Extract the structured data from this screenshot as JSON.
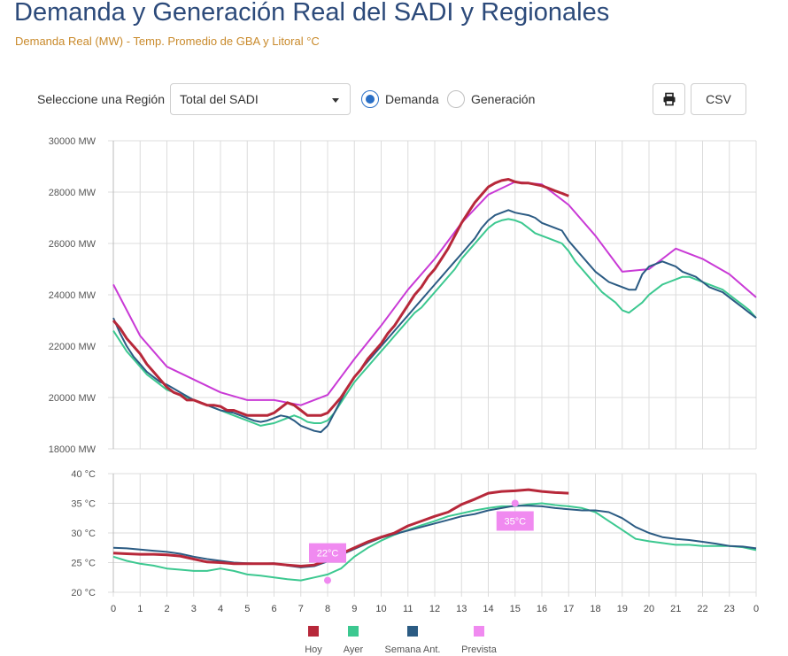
{
  "header": {
    "title": "Demanda y Generación Real del SADI y Regionales",
    "subtitle": "Demanda Real (MW) - Temp. Promedio de GBA y Litoral °C"
  },
  "controls": {
    "region_label": "Seleccione una Región",
    "region_value": "Total del SADI",
    "radio_demanda": "Demanda",
    "radio_generacion": "Generación",
    "selected": "Demanda",
    "print_icon": "printer-icon",
    "csv_label": "CSV"
  },
  "chart_data": [
    {
      "type": "line",
      "ylim": [
        18000,
        30000
      ],
      "yticks": [
        "18000 MW",
        "20000 MW",
        "22000 MW",
        "24000 MW",
        "26000 MW",
        "28000 MW",
        "30000 MW"
      ],
      "grid": true,
      "series": [
        {
          "name": "Hoy",
          "color": "#b7283a",
          "x": [
            0,
            0.25,
            0.5,
            0.75,
            1,
            1.25,
            1.5,
            1.75,
            2,
            2.25,
            2.5,
            2.75,
            3,
            3.25,
            3.5,
            3.75,
            4,
            4.25,
            4.5,
            4.75,
            5,
            5.25,
            5.5,
            5.75,
            6,
            6.25,
            6.5,
            6.75,
            7,
            7.25,
            7.5,
            7.75,
            8,
            8.25,
            8.5,
            8.75,
            9,
            9.25,
            9.5,
            9.75,
            10,
            10.25,
            10.5,
            10.75,
            11,
            11.25,
            11.5,
            11.75,
            12,
            12.25,
            12.5,
            12.75,
            13,
            13.25,
            13.5,
            13.75,
            14,
            14.25,
            14.5,
            14.75,
            15,
            15.25,
            15.5,
            15.75,
            16,
            16.25,
            16.5,
            16.75,
            17
          ],
          "y": [
            23000,
            22700,
            22300,
            22000,
            21700,
            21300,
            21000,
            20700,
            20400,
            20200,
            20100,
            19900,
            19900,
            19800,
            19700,
            19700,
            19650,
            19500,
            19500,
            19400,
            19300,
            19300,
            19300,
            19300,
            19400,
            19600,
            19800,
            19700,
            19500,
            19300,
            19300,
            19300,
            19400,
            19700,
            20000,
            20400,
            20800,
            21100,
            21500,
            21800,
            22100,
            22500,
            22800,
            23200,
            23600,
            24000,
            24300,
            24700,
            25000,
            25400,
            25800,
            26300,
            26800,
            27200,
            27600,
            27900,
            28200,
            28350,
            28450,
            28500,
            28400,
            28350,
            28350,
            28300,
            28250,
            28150,
            28050,
            27950,
            27850
          ]
        },
        {
          "name": "Ayer",
          "color": "#3cc890",
          "x": [
            0,
            0.25,
            0.5,
            0.75,
            1,
            1.25,
            1.5,
            1.75,
            2,
            2.25,
            2.5,
            2.75,
            3,
            3.25,
            3.5,
            3.75,
            4,
            4.25,
            4.5,
            4.75,
            5,
            5.25,
            5.5,
            5.75,
            6,
            6.25,
            6.5,
            6.75,
            7,
            7.25,
            7.5,
            7.75,
            8,
            8.25,
            8.5,
            8.75,
            9,
            9.25,
            9.5,
            9.75,
            10,
            10.25,
            10.5,
            10.75,
            11,
            11.25,
            11.5,
            11.75,
            12,
            12.25,
            12.5,
            12.75,
            13,
            13.25,
            13.5,
            13.75,
            14,
            14.25,
            14.5,
            14.75,
            15,
            15.25,
            15.5,
            15.75,
            16,
            16.25,
            16.5,
            16.75,
            17,
            17.25,
            17.5,
            17.75,
            18,
            18.25,
            18.5,
            18.75,
            19,
            19.25,
            19.5,
            19.75,
            20,
            20.25,
            20.5,
            20.75,
            21,
            21.25,
            21.5,
            21.75,
            22,
            22.25,
            22.5,
            22.75,
            23,
            23.25,
            23.5,
            23.75,
            24
          ],
          "y": [
            22600,
            22200,
            21800,
            21500,
            21200,
            20900,
            20700,
            20500,
            20300,
            20200,
            20100,
            20000,
            19900,
            19800,
            19700,
            19600,
            19500,
            19400,
            19300,
            19200,
            19100,
            19000,
            18900,
            18950,
            19000,
            19100,
            19200,
            19300,
            19200,
            19050,
            19000,
            19000,
            19100,
            19400,
            19800,
            20200,
            20600,
            20900,
            21200,
            21500,
            21800,
            22100,
            22400,
            22700,
            23000,
            23300,
            23500,
            23800,
            24100,
            24400,
            24700,
            25000,
            25400,
            25700,
            26000,
            26300,
            26600,
            26800,
            26900,
            26950,
            26900,
            26800,
            26600,
            26400,
            26300,
            26200,
            26100,
            26000,
            25700,
            25300,
            25000,
            24700,
            24400,
            24100,
            23900,
            23700,
            23400,
            23300,
            23500,
            23700,
            24000,
            24200,
            24400,
            24500,
            24600,
            24700,
            24700,
            24600,
            24500,
            24400,
            24300,
            24200,
            24000,
            23800,
            23600,
            23400,
            23100
          ]
        },
        {
          "name": "Semana Ant.",
          "color": "#2b5b83",
          "x": [
            0,
            0.25,
            0.5,
            0.75,
            1,
            1.25,
            1.5,
            1.75,
            2,
            2.25,
            2.5,
            2.75,
            3,
            3.25,
            3.5,
            3.75,
            4,
            4.25,
            4.5,
            4.75,
            5,
            5.25,
            5.5,
            5.75,
            6,
            6.25,
            6.5,
            6.75,
            7,
            7.25,
            7.5,
            7.75,
            8,
            8.25,
            8.5,
            8.75,
            9,
            9.25,
            9.5,
            9.75,
            10,
            10.25,
            10.5,
            10.75,
            11,
            11.25,
            11.5,
            11.75,
            12,
            12.25,
            12.5,
            12.75,
            13,
            13.25,
            13.5,
            13.75,
            14,
            14.25,
            14.5,
            14.75,
            15,
            15.25,
            15.5,
            15.75,
            16,
            16.25,
            16.5,
            16.75,
            17,
            17.25,
            17.5,
            17.75,
            18,
            18.25,
            18.5,
            18.75,
            19,
            19.25,
            19.5,
            19.75,
            20,
            20.25,
            20.5,
            20.75,
            21,
            21.25,
            21.5,
            21.75,
            22,
            22.25,
            22.5,
            22.75,
            23,
            23.25,
            23.5,
            23.75,
            24
          ],
          "y": [
            23100,
            22500,
            22000,
            21600,
            21300,
            21000,
            20800,
            20600,
            20500,
            20350,
            20200,
            20050,
            19900,
            19800,
            19700,
            19600,
            19500,
            19450,
            19400,
            19300,
            19200,
            19100,
            19050,
            19100,
            19200,
            19300,
            19250,
            19100,
            18900,
            18800,
            18700,
            18650,
            18900,
            19400,
            19900,
            20400,
            20800,
            21100,
            21400,
            21700,
            22000,
            22300,
            22600,
            22900,
            23200,
            23500,
            23800,
            24100,
            24400,
            24700,
            25000,
            25300,
            25600,
            25900,
            26200,
            26600,
            26900,
            27100,
            27200,
            27300,
            27200,
            27150,
            27100,
            27000,
            26800,
            26700,
            26600,
            26500,
            26100,
            25800,
            25500,
            25200,
            24900,
            24700,
            24500,
            24400,
            24300,
            24200,
            24200,
            24800,
            25100,
            25200,
            25300,
            25200,
            25100,
            24900,
            24800,
            24700,
            24500,
            24300,
            24200,
            24100,
            23900,
            23700,
            23500,
            23300,
            23100
          ]
        },
        {
          "name": "Prevista",
          "color": "#c93ad6",
          "x": [
            0,
            1,
            2,
            3,
            4,
            5,
            6,
            7,
            8,
            9,
            10,
            11,
            12,
            13,
            14,
            15,
            16,
            17,
            18,
            19,
            20,
            21,
            22,
            23,
            24
          ],
          "y": [
            24400,
            22400,
            21200,
            20700,
            20200,
            19900,
            19900,
            19700,
            20100,
            21500,
            22800,
            24200,
            25400,
            26800,
            27900,
            28400,
            28300,
            27500,
            26300,
            24900,
            25000,
            25800,
            25400,
            24800,
            23900
          ]
        }
      ]
    },
    {
      "type": "line",
      "ylim": [
        20,
        40
      ],
      "yticks": [
        "20 °C",
        "25 °C",
        "30 °C",
        "35 °C",
        "40 °C"
      ],
      "xticks": [
        "0",
        "1",
        "2",
        "3",
        "4",
        "5",
        "6",
        "7",
        "8",
        "9",
        "10",
        "11",
        "12",
        "13",
        "14",
        "15",
        "16",
        "17",
        "18",
        "19",
        "20",
        "21",
        "22",
        "23",
        "0"
      ],
      "grid": true,
      "series": [
        {
          "name": "Hoy",
          "color": "#b7283a",
          "x": [
            0,
            0.5,
            1,
            1.5,
            2,
            2.5,
            3,
            3.5,
            4,
            4.5,
            5,
            5.5,
            6,
            6.5,
            7,
            7.5,
            8,
            8.5,
            9,
            9.5,
            10,
            10.5,
            11,
            11.5,
            12,
            12.5,
            13,
            13.5,
            14,
            14.5,
            15,
            15.5,
            16,
            16.5,
            17
          ],
          "y": [
            26.6,
            26.5,
            26.4,
            26.4,
            26.3,
            26.1,
            25.6,
            25.1,
            25.0,
            24.8,
            24.8,
            24.8,
            24.8,
            24.6,
            24.4,
            24.6,
            25.4,
            26.5,
            27.5,
            28.5,
            29.3,
            30.0,
            31.2,
            32.0,
            32.8,
            33.5,
            34.8,
            35.7,
            36.7,
            37.0,
            37.1,
            37.3,
            37.0,
            36.8,
            36.7
          ]
        },
        {
          "name": "Ayer",
          "color": "#3cc890",
          "x": [
            0,
            0.5,
            1,
            1.5,
            2,
            2.5,
            3,
            3.5,
            4,
            4.5,
            5,
            5.5,
            6,
            6.5,
            7,
            7.5,
            8,
            8.5,
            9,
            9.5,
            10,
            10.5,
            11,
            11.5,
            12,
            12.5,
            13,
            13.5,
            14,
            14.5,
            15,
            15.5,
            16,
            16.5,
            17,
            17.5,
            18,
            18.5,
            19,
            19.5,
            20,
            20.5,
            21,
            21.5,
            22,
            22.5,
            23,
            23.5,
            24
          ],
          "y": [
            26.0,
            25.3,
            24.8,
            24.5,
            24.0,
            23.8,
            23.6,
            23.6,
            24.0,
            23.6,
            23.0,
            22.8,
            22.5,
            22.2,
            22.0,
            22.5,
            23.0,
            24.0,
            26.0,
            27.5,
            28.7,
            29.7,
            30.5,
            31.3,
            32.0,
            32.8,
            33.3,
            33.8,
            34.2,
            34.5,
            34.5,
            34.8,
            35.0,
            34.7,
            34.5,
            34.2,
            33.5,
            32.0,
            30.5,
            29.0,
            28.6,
            28.3,
            28.0,
            28.0,
            27.8,
            27.8,
            27.8,
            27.6,
            27.1
          ]
        },
        {
          "name": "Semana Ant.",
          "color": "#2b5b83",
          "x": [
            0,
            0.5,
            1,
            1.5,
            2,
            2.5,
            3,
            3.5,
            4,
            4.5,
            5,
            5.5,
            6,
            6.5,
            7,
            7.5,
            8,
            8.5,
            9,
            9.5,
            10,
            10.5,
            11,
            11.5,
            12,
            12.5,
            13,
            13.5,
            14,
            14.5,
            15,
            15.5,
            16,
            16.5,
            17,
            17.5,
            18,
            18.5,
            19,
            19.5,
            20,
            20.5,
            21,
            21.5,
            22,
            22.5,
            23,
            23.5,
            24
          ],
          "y": [
            27.5,
            27.4,
            27.2,
            27.0,
            26.8,
            26.5,
            26.0,
            25.6,
            25.3,
            25.0,
            24.9,
            24.8,
            24.9,
            24.5,
            24.2,
            24.4,
            25.2,
            26.3,
            27.3,
            28.3,
            29.2,
            29.8,
            30.4,
            31.0,
            31.6,
            32.2,
            32.8,
            33.2,
            33.8,
            34.2,
            34.6,
            34.6,
            34.5,
            34.2,
            34.0,
            33.8,
            33.8,
            33.5,
            32.5,
            31.0,
            30.0,
            29.3,
            29.0,
            28.8,
            28.5,
            28.2,
            27.8,
            27.7,
            27.4
          ]
        },
        {
          "name": "Prevista",
          "color": "#f08af0",
          "points": [
            {
              "x": 8,
              "y": 22,
              "label": "22°C"
            },
            {
              "x": 15,
              "y": 35,
              "label": "35°C"
            }
          ]
        }
      ]
    }
  ]
}
